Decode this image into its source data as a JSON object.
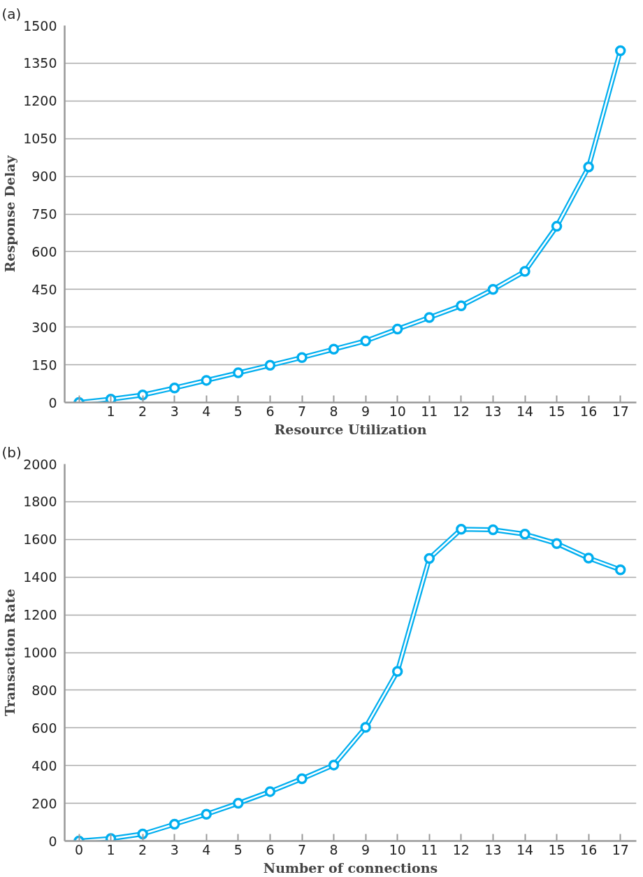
{
  "chart_data": [
    {
      "type": "line",
      "annotations": [
        "(a)"
      ],
      "xlabel": "Resource Utilization",
      "ylabel": "Response Delay",
      "x": [
        0,
        1,
        2,
        3,
        4,
        5,
        6,
        7,
        8,
        9,
        10,
        11,
        12,
        13,
        14,
        15,
        16,
        17
      ],
      "series": [
        {
          "color": "#00aeef",
          "values": [
            0,
            13,
            30,
            58,
            88,
            118,
            148,
            179,
            212,
            245,
            292,
            338,
            385,
            450,
            522,
            701,
            937,
            1400
          ]
        }
      ],
      "xlim": [
        -0.45,
        17.5
      ],
      "ylim": [
        0,
        1500
      ],
      "xticks": [
        {
          "value": 0,
          "label": null
        },
        1,
        2,
        3,
        4,
        5,
        6,
        7,
        8,
        9,
        10,
        11,
        12,
        13,
        14,
        15,
        16,
        17
      ],
      "yticks": [
        0,
        150,
        300,
        450,
        600,
        750,
        900,
        1050,
        1200,
        1350,
        1500
      ],
      "grid": "y",
      "marker": "circle",
      "line_style": "solid"
    },
    {
      "type": "line",
      "annotations": [
        "(b)"
      ],
      "xlabel": "Number of connections",
      "ylabel": "Transaction Rate",
      "x": [
        0,
        1,
        2,
        3,
        4,
        5,
        6,
        7,
        8,
        9,
        10,
        11,
        12,
        13,
        14,
        15,
        16,
        17
      ],
      "series": [
        {
          "color": "#00aeef",
          "values": [
            0,
            13,
            37,
            89,
            142,
            200,
            262,
            330,
            403,
            603,
            900,
            1499,
            1654,
            1651,
            1628,
            1578,
            1501,
            1439
          ]
        }
      ],
      "xlim": [
        -0.45,
        17.5
      ],
      "ylim": [
        0,
        2000
      ],
      "xticks": [
        0,
        1,
        2,
        3,
        4,
        5,
        6,
        7,
        8,
        9,
        10,
        11,
        12,
        13,
        14,
        15,
        16,
        17
      ],
      "yticks": [
        0,
        200,
        400,
        600,
        800,
        1000,
        1200,
        1400,
        1600,
        1800,
        2000
      ],
      "grid": "y",
      "marker": "circle",
      "line_style": "solid"
    }
  ]
}
